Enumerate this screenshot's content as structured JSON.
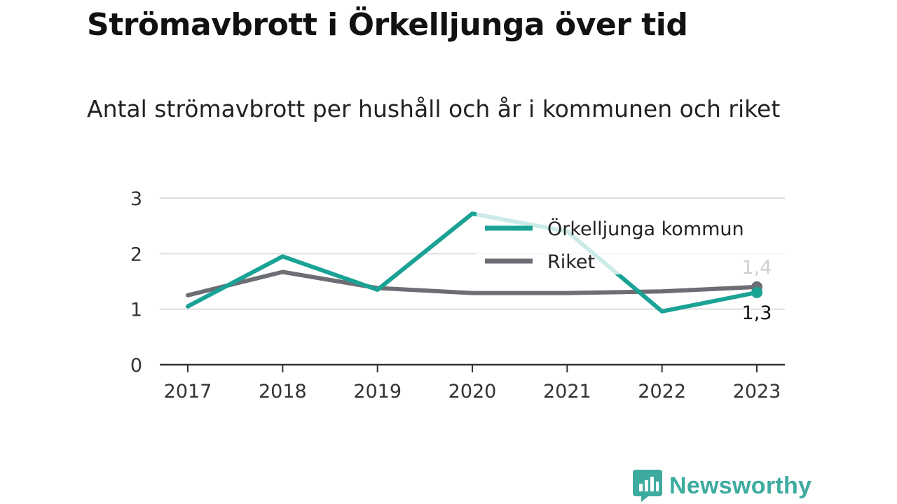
{
  "title": "Strömavbrott i Örkelljunga över tid",
  "subtitle": "Antal strömavbrott per hushåll och år i kommunen och riket",
  "brand": {
    "name": "Newsworthy",
    "icon": "newsworthy-logo-icon",
    "color": "#3eab9f"
  },
  "chart_data": {
    "type": "line",
    "categories": [
      "2017",
      "2018",
      "2019",
      "2020",
      "2021",
      "2022",
      "2023"
    ],
    "ylim": [
      0,
      3
    ],
    "yticks": [
      "0",
      "1",
      "2",
      "3"
    ],
    "grid": true,
    "legend_position": "top-right",
    "series": [
      {
        "name": "Örkelljunga kommun",
        "color": "#1aa295",
        "values": [
          1.05,
          1.95,
          1.35,
          2.72,
          2.4,
          0.96,
          1.3
        ]
      },
      {
        "name": "Riket",
        "color": "#6d6d74",
        "values": [
          1.25,
          1.67,
          1.38,
          1.29,
          1.29,
          1.32,
          1.4
        ]
      }
    ],
    "end_labels": [
      {
        "series": "Örkelljunga kommun",
        "text": "1,3",
        "color": "#111111"
      },
      {
        "series": "Riket",
        "text": "1,4",
        "color": "#cfcfcf"
      }
    ]
  }
}
